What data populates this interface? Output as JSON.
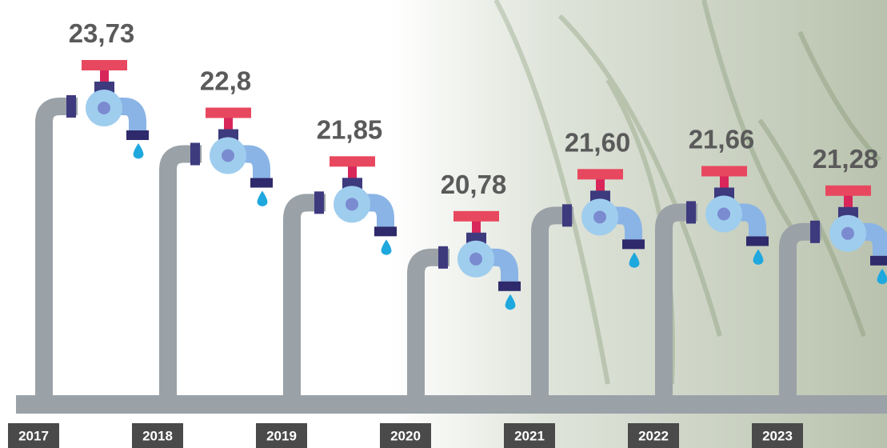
{
  "chart_data": {
    "type": "pictograph",
    "categories": [
      "2017",
      "2018",
      "2019",
      "2020",
      "2021",
      "2022",
      "2023"
    ],
    "values": [
      23.73,
      22.8,
      21.85,
      20.78,
      21.6,
      21.66,
      21.28
    ],
    "value_labels": [
      "23,73",
      "22,8",
      "21,85",
      "20,78",
      "21,60",
      "21,66",
      "21,28"
    ]
  }
}
